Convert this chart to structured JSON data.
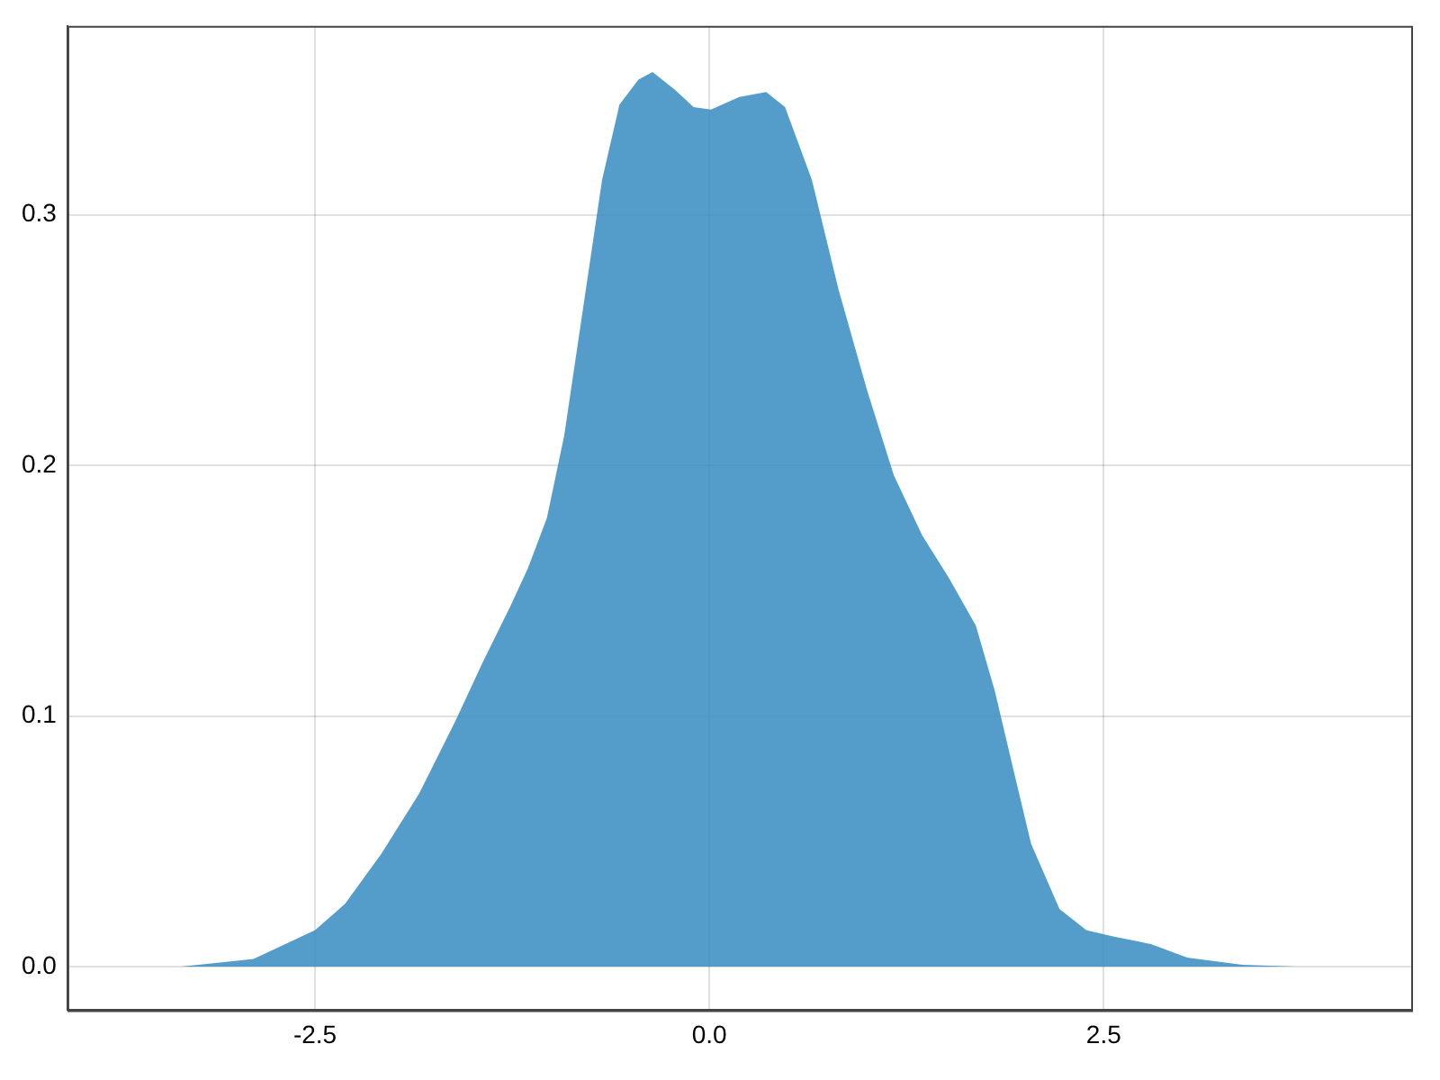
{
  "chart_data": {
    "type": "area",
    "x": [
      -3.35,
      -2.89,
      -2.5,
      -2.31,
      -2.08,
      -1.84,
      -1.61,
      -1.44,
      -1.26,
      -1.15,
      -1.03,
      -0.92,
      -0.8,
      -0.68,
      -0.57,
      -0.45,
      -0.36,
      -0.22,
      -0.1,
      0.01,
      0.19,
      0.36,
      0.48,
      0.65,
      0.82,
      1.0,
      1.17,
      1.35,
      1.52,
      1.69,
      1.81,
      1.93,
      2.04,
      2.22,
      2.39,
      2.56,
      2.8,
      3.03,
      3.38,
      3.72
    ],
    "series": [
      {
        "color": "#3a8ec2",
        "values": [
          0,
          0.003,
          0.0145,
          0.025,
          0.045,
          0.069,
          0.098,
          0.121,
          0.144,
          0.159,
          0.179,
          0.212,
          0.263,
          0.314,
          0.344,
          0.354,
          0.357,
          0.35,
          0.343,
          0.342,
          0.347,
          0.349,
          0.343,
          0.314,
          0.27,
          0.23,
          0.196,
          0.172,
          0.155,
          0.136,
          0.11,
          0.078,
          0.049,
          0.023,
          0.0145,
          0.012,
          0.009,
          0.0036,
          0.0007,
          0
        ]
      }
    ],
    "xlim": [
      -4.07,
      4.45
    ],
    "ylim": [
      -0.0174,
      0.3754
    ],
    "xticks": [
      {
        "value": -2.5,
        "label": "-2.5"
      },
      {
        "value": 0,
        "label": "0.0"
      },
      {
        "value": 2.5,
        "label": "2.5"
      }
    ],
    "yticks": [
      {
        "value": 0,
        "label": "0.0"
      },
      {
        "value": 0.1,
        "label": "0.1"
      },
      {
        "value": 0.2,
        "label": "0.2"
      },
      {
        "value": 0.3,
        "label": "0.3"
      }
    ],
    "grid": true
  }
}
